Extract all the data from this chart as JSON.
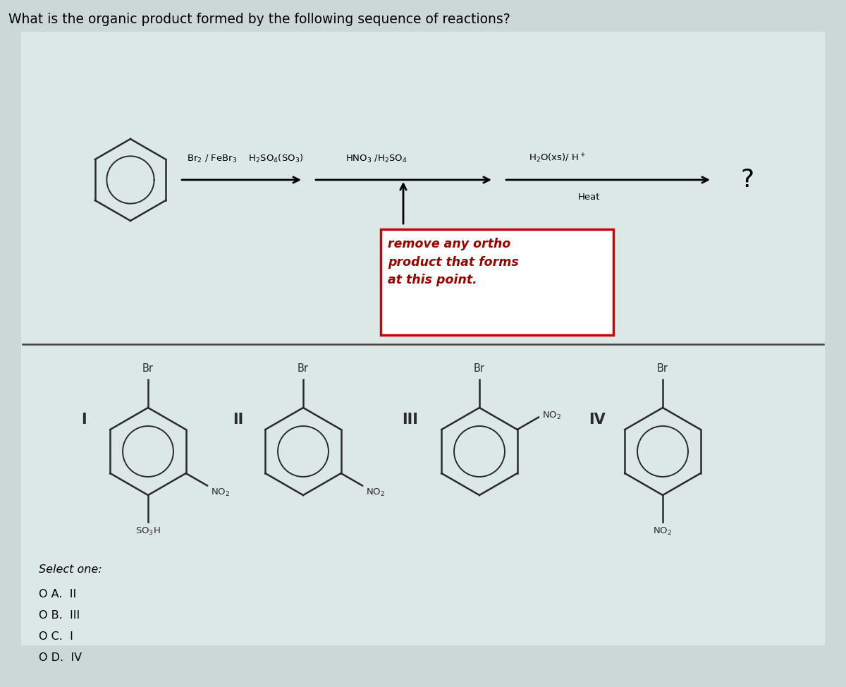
{
  "title": "What is the organic product formed by the following sequence of reactions?",
  "title_fontsize": 13.5,
  "bg_color": "#ccd8d5",
  "panel_color": "#dce8e5",
  "box_text": "remove any ortho\nproduct that forms\nat this point.",
  "select_text": "Select one:",
  "options": [
    "O A.  II",
    "O B.  III",
    "O C.  I",
    "O D.  IV"
  ],
  "line_color": "#2a2a2a",
  "dark_red": "#990000",
  "question_mark": "?"
}
